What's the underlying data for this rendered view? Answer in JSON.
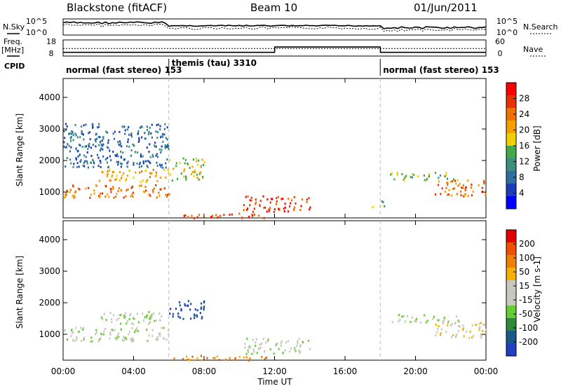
{
  "header": {
    "radar": "Blackstone (fitACF)",
    "beam": "Beam 10",
    "date": "01/Jun/2011"
  },
  "summary": {
    "nsky_label": "N.Sky",
    "nsky_ticks": [
      "10^5",
      "10^0"
    ],
    "nsearch_label": "N.Search",
    "nsearch_ticks": [
      "10^5",
      "10^0"
    ],
    "freq_label": "Freq.",
    "freq_unit": "[MHz]",
    "freq_ticks": [
      "18",
      "8"
    ],
    "nave_label": "Nave",
    "nave_ticks": [
      "60",
      "0"
    ],
    "cpid_label": "CPID",
    "cpid_segments": [
      {
        "start_h": 0,
        "end_h": 6,
        "label": "normal (fast stereo) 153"
      },
      {
        "start_h": 6,
        "end_h": 18,
        "label": "themis (tau) 3310"
      },
      {
        "start_h": 18,
        "end_h": 24,
        "label": "normal (fast stereo) 153"
      }
    ],
    "freq_series_mhz": [
      [
        0,
        10.3
      ],
      [
        6,
        10.3
      ],
      [
        12,
        10.3
      ],
      [
        12.01,
        13.6
      ],
      [
        18,
        13.6
      ],
      [
        18.01,
        10.3
      ],
      [
        24,
        10.3
      ]
    ],
    "nave_series": [
      [
        0,
        28
      ],
      [
        6,
        28
      ],
      [
        12,
        28
      ],
      [
        18,
        28
      ],
      [
        24,
        28
      ]
    ]
  },
  "chart_data": [
    {
      "type": "heatmap",
      "panel": "power",
      "ylabel": "Slant Range [km]",
      "xlabel": "Time UT",
      "xlim": [
        0,
        24
      ],
      "ylim": [
        180,
        4600
      ],
      "yticks": [
        1000,
        2000,
        3000,
        4000
      ],
      "xtick_labels": [
        "00:00",
        "04:00",
        "08:00",
        "12:00",
        "16:00",
        "20:00",
        "00:00"
      ],
      "colorbar": {
        "label": "Power [dB]",
        "ticks": [
          "4",
          "8",
          "12",
          "16",
          "20",
          "24",
          "28"
        ],
        "colors": [
          "#0000ff",
          "#1a3db8",
          "#2f6fa0",
          "#3c8f7a",
          "#44a84a",
          "#f0d000",
          "#f5a000",
          "#f07000",
          "#e83000",
          "#ff0000"
        ]
      },
      "scatter_regions": [
        {
          "t0": 0.0,
          "t1": 6.2,
          "r0": 850,
          "r1": 1250,
          "level": 7
        },
        {
          "t0": 2.0,
          "t1": 6.0,
          "r0": 1350,
          "r1": 1750,
          "level": 6
        },
        {
          "t0": 0.0,
          "t1": 6.0,
          "r0": 1800,
          "r1": 3200,
          "level": 2
        },
        {
          "t0": 6.0,
          "t1": 8.0,
          "r0": 1400,
          "r1": 2100,
          "level": 5
        },
        {
          "t0": 6.2,
          "t1": 11.8,
          "r0": 200,
          "r1": 350,
          "level": 8
        },
        {
          "t0": 10.2,
          "t1": 14.0,
          "r0": 400,
          "r1": 900,
          "level": 8
        },
        {
          "t0": 17.5,
          "t1": 18.2,
          "r0": 550,
          "r1": 750,
          "level": 4
        },
        {
          "t0": 18.5,
          "t1": 22.5,
          "r0": 1400,
          "r1": 1650,
          "level": 4
        },
        {
          "t0": 21.0,
          "t1": 24.0,
          "r0": 900,
          "r1": 1400,
          "level": 7
        }
      ]
    },
    {
      "type": "heatmap",
      "panel": "velocity",
      "ylabel": "Slant Range [km]",
      "xlabel": "Time UT",
      "xlim": [
        0,
        24
      ],
      "ylim": [
        180,
        4600
      ],
      "yticks": [
        1000,
        2000,
        3000,
        4000
      ],
      "xtick_labels": [
        "00:00",
        "04:00",
        "08:00",
        "12:00",
        "16:00",
        "20:00",
        "00:00"
      ],
      "colorbar": {
        "label": "Velocity [m s-1]",
        "ticks": [
          "200",
          "100",
          "50",
          "15",
          "-15",
          "-50",
          "-100",
          "-200"
        ],
        "colors": [
          "#2040c0",
          "#1a5a8a",
          "#2e8a3a",
          "#66cc33",
          "#c8c8c0",
          "#c8c8c0",
          "#f5b000",
          "#f08000",
          "#f05000",
          "#e00000"
        ]
      },
      "scatter_regions": [
        {
          "t0": 0.0,
          "t1": 6.0,
          "r0": 800,
          "r1": 1250,
          "level": 4
        },
        {
          "t0": 2.0,
          "t1": 6.0,
          "r0": 1350,
          "r1": 1750,
          "level": 4
        },
        {
          "t0": 6.0,
          "t1": 8.0,
          "r0": 1500,
          "r1": 2100,
          "level": 0
        },
        {
          "t0": 6.2,
          "t1": 11.8,
          "r0": 200,
          "r1": 350,
          "level": 7
        },
        {
          "t0": 10.2,
          "t1": 14.0,
          "r0": 400,
          "r1": 900,
          "level": 4
        },
        {
          "t0": 18.5,
          "t1": 22.5,
          "r0": 1400,
          "r1": 1650,
          "level": 4
        },
        {
          "t0": 21.0,
          "t1": 24.0,
          "r0": 900,
          "r1": 1400,
          "level": 5
        }
      ]
    }
  ]
}
